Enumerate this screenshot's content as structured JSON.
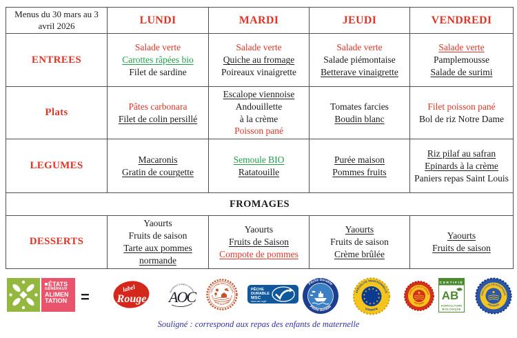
{
  "palette": {
    "red": "#e03427",
    "green": "#1f9e48",
    "ink": "#1b1b1b",
    "border": "#4f4f4f",
    "footer_blue": "#32339b",
    "ega_green": "#94b83f",
    "ega_pink": "#e9536b",
    "label_rouge_red": "#d5281c",
    "hve_orange": "#c7512a",
    "msc_blue": "#11579c",
    "pd_navy": "#1c3e8f",
    "pd_blue": "#3b7fc4",
    "eu_yellow": "#f5c51e",
    "eu_blue": "#0b3a92",
    "aop_red": "#d6301c",
    "igp_blue": "#2a57a8",
    "ab_green": "#4c8a2f",
    "aoc_ink": "#1c1c2e"
  },
  "table": {
    "corner_title": "Menus du 30 mars au 3 avril 2026",
    "days": [
      "LUNDI",
      "MARDI",
      "JEUDI",
      "VENDREDI"
    ],
    "rows": [
      {
        "type": "menu",
        "category": "ENTREES",
        "cells": [
          [
            {
              "t": "Salade verte",
              "c": "red"
            },
            {
              "t": "Carottes râpées bio",
              "c": "green",
              "u": true
            },
            {
              "t": "Filet de sardine"
            }
          ],
          [
            {
              "t": "Salade verte",
              "c": "red"
            },
            {
              "t": "Quiche au fromage",
              "u": true
            },
            {
              "t": "Poireaux vinaigrette"
            }
          ],
          [
            {
              "t": "Salade verte",
              "c": "red"
            },
            {
              "t": "Salade piémontaise"
            },
            {
              "t": "Betterave vinaigrette",
              "u": true
            }
          ],
          [
            {
              "t": "Salade verte",
              "c": "red",
              "u": true
            },
            {
              "t": "Pamplemousse"
            },
            {
              "t": "Salade de surimi",
              "u": true
            }
          ]
        ]
      },
      {
        "type": "menu",
        "category": "Plats",
        "cells": [
          [
            {
              "t": "Pâtes carbonara",
              "c": "red"
            },
            {
              "t": "Filet de colin persillé",
              "u": true
            }
          ],
          [
            {
              "t": "Escalope viennoise",
              "u": true
            },
            {
              "t": "Andouillette"
            },
            {
              "t": "à la crème"
            },
            {
              "t": "Poisson pané",
              "c": "red"
            }
          ],
          [
            {
              "t": "Tomates farcies"
            },
            {
              "t": "Boudin blanc",
              "u": true
            }
          ],
          [
            {
              "t": "Filet poisson pané",
              "c": "red"
            },
            {
              "t": "Bol de riz Notre Dame"
            }
          ]
        ]
      },
      {
        "type": "menu",
        "category": "LEGUMES",
        "cells": [
          [
            {
              "t": "Macaronis",
              "u": true
            },
            {
              "t": "Gratin de courgette",
              "u": true
            }
          ],
          [
            {
              "t": "Semoule BIO",
              "c": "green",
              "u": true
            },
            {
              "t": "Ratatouille",
              "u": true
            }
          ],
          [
            {
              "t": "Purée maison",
              "u": true
            },
            {
              "t": "Pommes fruits",
              "u": true
            }
          ],
          [
            {
              "t": "Riz pilaf au safran",
              "u": true
            },
            {
              "t": "Epinards à la crème",
              "u": true
            },
            {
              "t": "Paniers repas Saint Louis"
            }
          ]
        ]
      },
      {
        "type": "span",
        "label": "FROMAGES"
      },
      {
        "type": "menu",
        "category": "DESSERTS",
        "cells": [
          [
            {
              "t": "Yaourts"
            },
            {
              "t": "Fruits de saison"
            },
            {
              "t": "Tarte aux pommes normande",
              "u": true
            }
          ],
          [
            {
              "t": "Yaourts"
            },
            {
              "t": "Fruits de Saison",
              "u": true
            },
            {
              "t": "Compote de pommes",
              "c": "red",
              "u": true
            }
          ],
          [
            {
              "t": "Yaourts",
              "u": true
            },
            {
              "t": "Fruits de saison"
            },
            {
              "t": "Crème brûlée",
              "u": true
            }
          ],
          [
            {
              "t": "Yaourts",
              "u": true
            },
            {
              "t": "Fruits de saison",
              "u": true
            }
          ]
        ]
      }
    ]
  },
  "legend": {
    "equals_sign": "=",
    "ega": {
      "lines": [
        "ÉTATS",
        "GÉNÉRAUX",
        "ALIMEN",
        "TATION"
      ]
    },
    "label_rouge": {
      "word1": "label",
      "word2": "Rouge"
    },
    "aoc": {
      "letters": "AOC",
      "arc_text": "Appellation d'origine contrôlée"
    },
    "hve": {
      "ring_top": "ISSU D'UNE EXPLOITATION",
      "ring_bottom": "HAUTE VALEUR ENVIRONNEMENTALE"
    },
    "msc": {
      "line1": "PÊCHE",
      "line2": "DURABLE",
      "line3": "MSC",
      "url": "www.msc.org/fr"
    },
    "peche_durable": {
      "arc_top": "Pêche Durable",
      "arc_bottom": "Pêche Durable"
    },
    "stg": {
      "ring_top": "SPÉCIALITÉ TRADITIONNELLE",
      "ring_bottom": "GARANTIE",
      "stars": "★ ★ ★ ★ ★ ★ ★ ★ ★ ★ ★ ★"
    },
    "aop": {
      "ring_top": "APPELLATION D'ORIGINE",
      "ring_bottom": "PROTÉGÉE"
    },
    "ab": {
      "top": "CERTIFIÉ",
      "letters": "AB",
      "bottom1": "AGRICULTURE",
      "bottom2": "BIOLOGIQUE"
    },
    "igp": {
      "ring_top": "INDICATION GÉOGRAPHIQUE",
      "ring_bottom": "PROTÉGÉE"
    }
  },
  "footer": {
    "note": "Souligné : correspond aux repas des enfants de maternelle"
  }
}
